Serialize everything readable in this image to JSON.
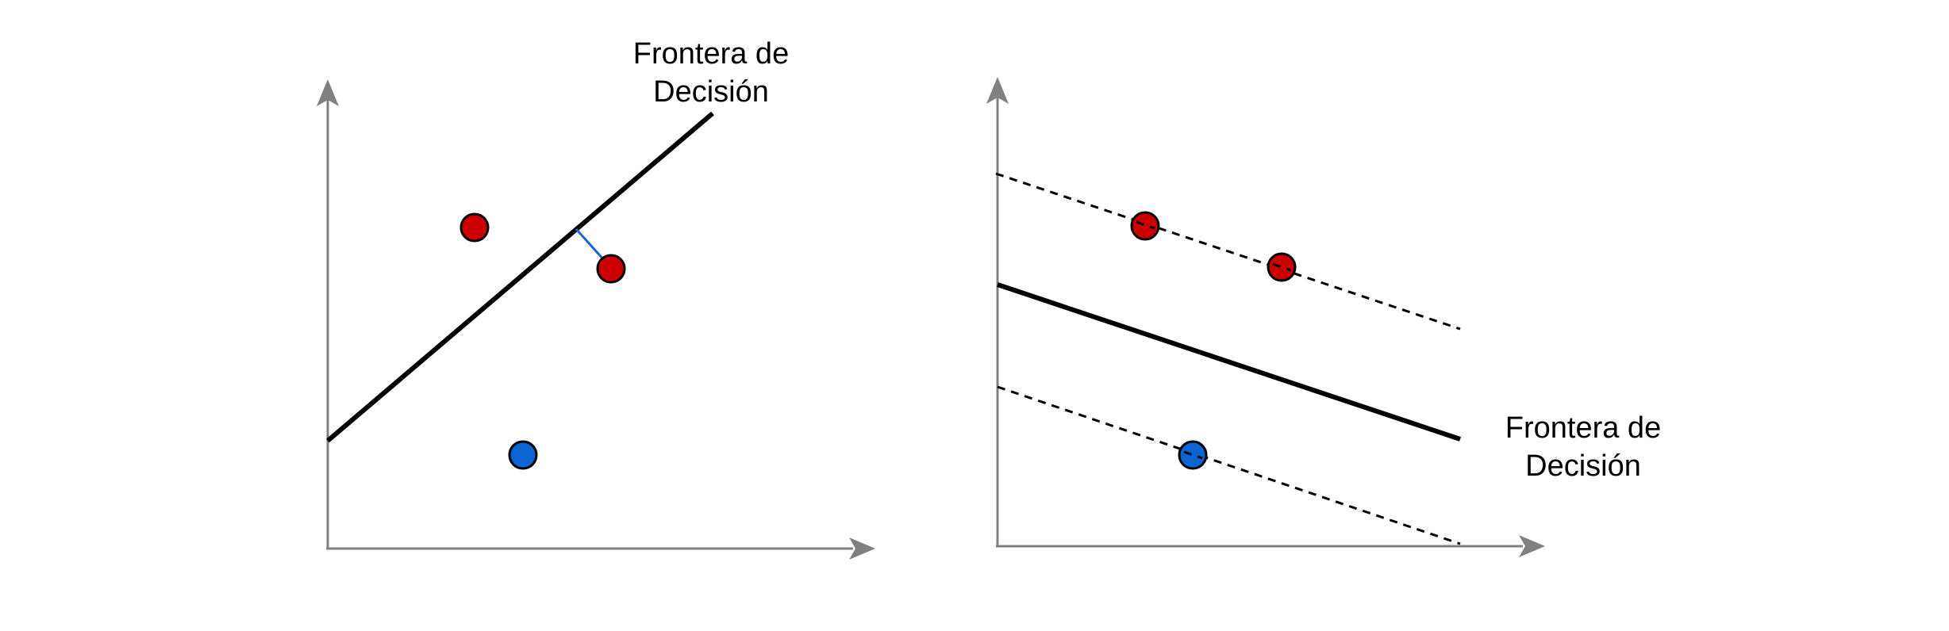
{
  "left_panel": {
    "label_line1": "Frontera de",
    "label_line2": "Decisión"
  },
  "right_panel": {
    "label_line1": "Frontera de",
    "label_line2": "Decisión"
  },
  "colors": {
    "axis": "#808080",
    "boundary": "#000000",
    "class_red": "#CC0000",
    "class_blue": "#0A64D2",
    "distance_line": "#1A66CC",
    "point_outline": "#000000"
  },
  "icons": {
    "axis_arrowhead": "arrowhead-icon"
  }
}
